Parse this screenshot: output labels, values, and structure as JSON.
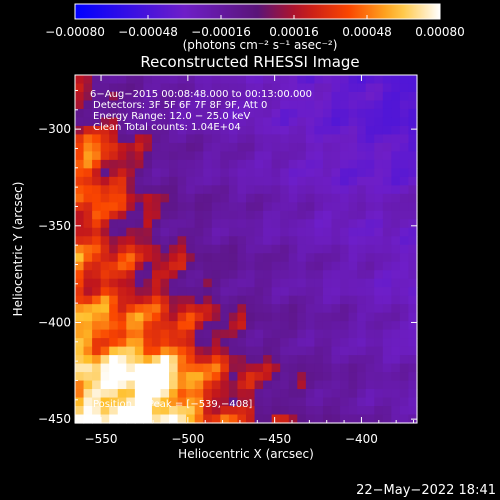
{
  "chart_data": {
    "type": "heatmap",
    "title": "Reconstructed RHESSI Image",
    "xlabel": "Heliocentric X (arcsec)",
    "ylabel": "Heliocentric Y (arcsec)",
    "xlim": [
      -565,
      -368
    ],
    "ylim": [
      -452,
      -272
    ],
    "xticks": [
      -550,
      -500,
      -450,
      -400
    ],
    "xtick_labels": [
      "−550",
      "−500",
      "−450",
      "−400"
    ],
    "yticks": [
      -300,
      -350,
      -400,
      -450
    ],
    "ytick_labels": [
      "−300",
      "−350",
      "−400",
      "−450"
    ],
    "colorbar": {
      "min": -0.0008,
      "max": 0.0008,
      "colormap": "blue-purple-red-yellow-white",
      "ticks": [
        -0.0008,
        -0.00048,
        -0.00016,
        0.00016,
        0.00048,
        0.0008
      ],
      "tick_labels": [
        "−0.00080",
        "−0.00048",
        "−0.00016",
        "0.00016",
        "0.00048",
        "0.00080"
      ],
      "unit_label": "(photons cm⁻² s⁻¹ asec⁻²)"
    },
    "annotations": [
      "6−Aug−2015 00:08:48.000 to 00:13:00.000",
      "Detectors: 3F 5F 6F 7F 8F 9F, Att 0",
      "Energy Range: 12.0 − 25.0 keV",
      "Clean    Total counts: 1.04E+04"
    ],
    "peak_label": "Position of Peak = [−539,−408]",
    "peak": [
      -539,
      -408
    ]
  },
  "footer": {
    "date": "22−May−2022 18:41"
  }
}
